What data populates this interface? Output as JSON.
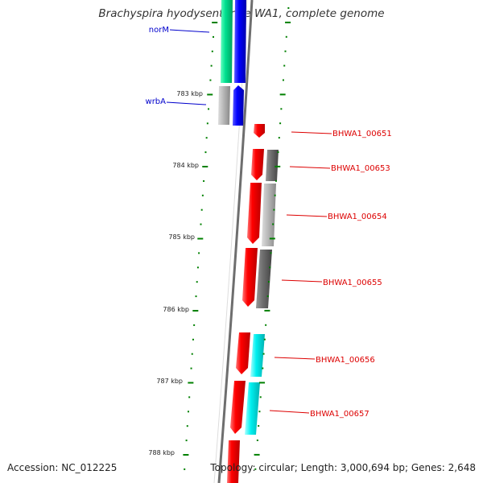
{
  "title": "Brachyspira hyodysenteriae WA1, complete genome",
  "footer": {
    "accession": "Accession: NC_012225",
    "summary": "Topology: circular; Length: 3,000,694 bp; Genes: 2,648"
  },
  "scale_labels": [
    "783 kbp",
    "784 kbp",
    "785 kbp",
    "786 kbp",
    "787 kbp",
    "788 kbp"
  ],
  "genes": [
    {
      "name": "norM",
      "color": "#0000cc"
    },
    {
      "name": "wrbA",
      "color": "#0000cc"
    },
    {
      "name": "BHWA1_00651",
      "color": "#dd0000"
    },
    {
      "name": "BHWA1_00653",
      "color": "#dd0000"
    },
    {
      "name": "BHWA1_00654",
      "color": "#dd0000"
    },
    {
      "name": "BHWA1_00655",
      "color": "#dd0000"
    },
    {
      "name": "BHWA1_00656",
      "color": "#dd0000"
    },
    {
      "name": "BHWA1_00657",
      "color": "#dd0000"
    }
  ],
  "colors": {
    "backbone": "#777777",
    "tick": "#008000",
    "cds_forward": "#ee0000",
    "blue_track": "#0000ee",
    "green_track": "#00dd88",
    "gray_track": "#aaaaaa",
    "dark_gray_track": "#666666",
    "cyan_track": "#00eeee"
  }
}
